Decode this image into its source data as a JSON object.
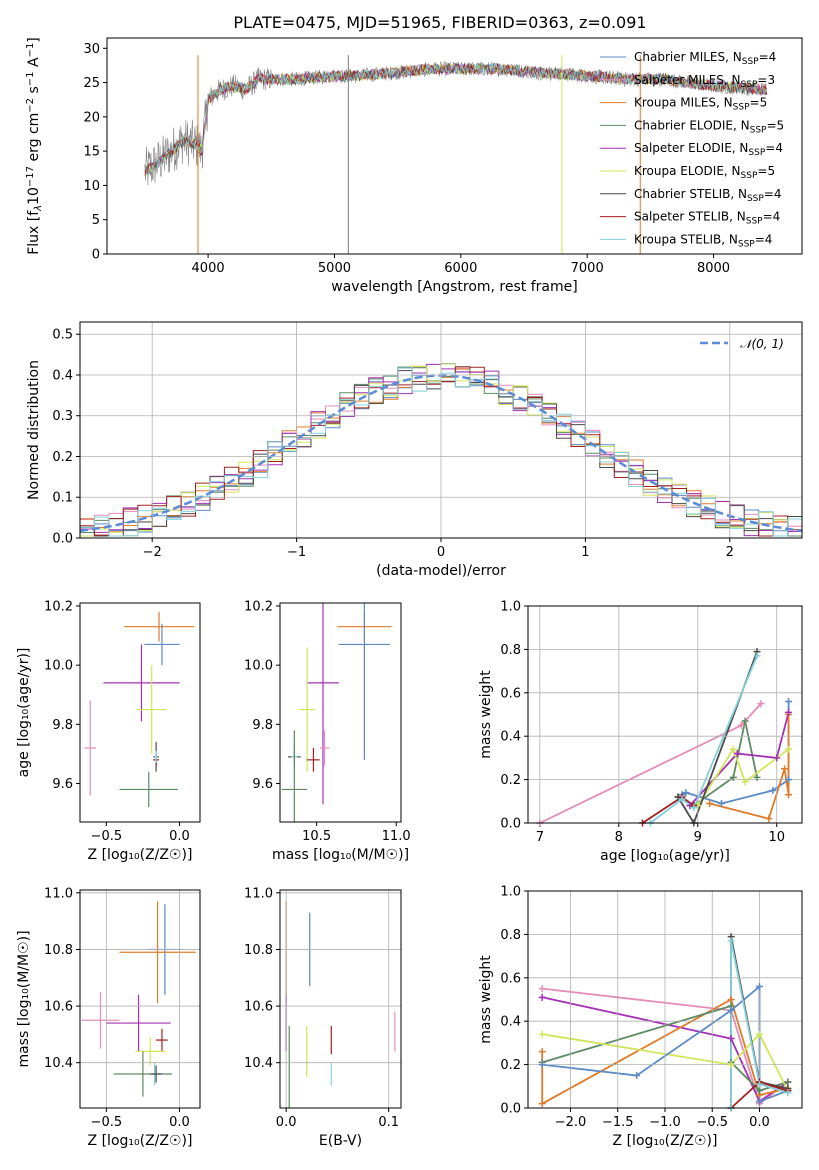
{
  "colors": {
    "chabrier_miles": "#5b8ac6",
    "salpeter_miles": "#e48cb8",
    "kroupa_miles": "#e07b2a",
    "chabrier_elodie": "#5e8a63",
    "salpeter_elodie": "#a330b5",
    "kroupa_elodie": "#d1e65c",
    "chabrier_stelib": "#4a4a4a",
    "salpeter_stelib": "#a32020",
    "kroupa_stelib": "#82d0db",
    "normal_fit": "#5b8ad6"
  },
  "chart_data": [
    {
      "id": "spectrum",
      "type": "line",
      "title": "PLATE=0475, MJD=51965, FIBERID=0363, z=0.091",
      "xlabel": "wavelength [Angstrom, rest frame]",
      "ylabel_parts": [
        "Flux [f",
        "λ",
        "10",
        "−17",
        " erg cm",
        "−2",
        " s",
        "−1",
        " A",
        "−1",
        "]"
      ],
      "xlim": [
        3200,
        8700
      ],
      "ylim": [
        0,
        31.5
      ],
      "xticks": [
        "4000",
        "5000",
        "6000",
        "7000",
        "8000"
      ],
      "yticks": [
        "0",
        "5",
        "10",
        "15",
        "20",
        "25",
        "30"
      ],
      "xticks_v": [
        4000,
        5000,
        6000,
        7000,
        8000
      ],
      "yticks_v": [
        0,
        5,
        10,
        15,
        20,
        25,
        30
      ],
      "observed_continuum": {
        "x": [
          3500,
          3650,
          3800,
          3900,
          3950,
          4000,
          4100,
          4200,
          4300,
          4400,
          4500,
          4700,
          5000,
          5200,
          5500,
          5800,
          6000,
          6300,
          6600,
          7000,
          7300,
          7600,
          8000,
          8400
        ],
        "y": [
          12,
          14,
          16.5,
          16,
          15,
          22.5,
          24,
          24.5,
          24,
          25.5,
          25.5,
          25.5,
          26,
          26,
          26.5,
          27,
          27,
          27,
          26.5,
          26,
          25.5,
          25.5,
          24.5,
          24
        ]
      },
      "legend": [
        {
          "label": "Chabrier MILES, N",
          "sub": "SSP",
          "tail": "=4"
        },
        {
          "label": "Salpeter MILES, N",
          "sub": "SSP",
          "tail": "=3"
        },
        {
          "label": "Kroupa MILES, N",
          "sub": "SSP",
          "tail": "=5"
        },
        {
          "label": "Chabrier ELODIE, N",
          "sub": "SSP",
          "tail": "=5"
        },
        {
          "label": "Salpeter ELODIE, N",
          "sub": "SSP",
          "tail": "=4"
        },
        {
          "label": "Kroupa ELODIE, N",
          "sub": "SSP",
          "tail": "=5"
        },
        {
          "label": "Chabrier STELIB, N",
          "sub": "SSP",
          "tail": "=4"
        },
        {
          "label": "Salpeter STELIB, N",
          "sub": "SSP",
          "tail": "=4"
        },
        {
          "label": "Kroupa STELIB, N",
          "sub": "SSP",
          "tail": "=4"
        }
      ]
    },
    {
      "id": "residuals",
      "type": "bar",
      "xlabel": "(data-model)/error",
      "ylabel": "Normed distribution",
      "xlim": [
        -2.5,
        2.5
      ],
      "ylim": [
        0,
        0.53
      ],
      "xticks": [
        "−2",
        "−1",
        "0",
        "1",
        "2"
      ],
      "yticks": [
        "0.0",
        "0.1",
        "0.2",
        "0.3",
        "0.4",
        "0.5"
      ],
      "xticks_v": [
        -2,
        -1,
        0,
        1,
        2
      ],
      "yticks_v": [
        0,
        0.1,
        0.2,
        0.3,
        0.4,
        0.5
      ],
      "bin_width": 0.1,
      "legend_label": "𝒩(0, 1)"
    },
    {
      "id": "age_vs_Z",
      "type": "scatter",
      "xlabel": "Z [log₁₀(Z/Z☉)]",
      "ylabel": "age  [log₁₀(age/yr)]",
      "xlim": [
        -0.68,
        0.14
      ],
      "ylim": [
        9.47,
        10.21
      ],
      "xticks": [
        "−0.5",
        "0.0"
      ],
      "xticks_v": [
        -0.5,
        0.0
      ],
      "yticks": [
        "9.6",
        "9.8",
        "10.0",
        "10.2"
      ],
      "yticks_v": [
        9.6,
        9.8,
        10.0,
        10.2
      ],
      "points": [
        {
          "s": "kroupa_miles",
          "x": -0.14,
          "y": 10.13,
          "xerr": 0.24,
          "yerr": 0.05
        },
        {
          "s": "chabrier_miles",
          "x": -0.12,
          "y": 10.07,
          "xerr": 0.12,
          "yerr": 0.07
        },
        {
          "s": "salpeter_elodie",
          "x": -0.26,
          "y": 9.94,
          "xerr": 0.26,
          "yerr": 0.13
        },
        {
          "s": "kroupa_elodie",
          "x": -0.19,
          "y": 9.85,
          "xerr": 0.1,
          "yerr": 0.15
        },
        {
          "s": "salpeter_miles",
          "x": -0.61,
          "y": 9.72,
          "xerr": 0.04,
          "yerr": 0.16
        },
        {
          "s": "chabrier_stelib",
          "x": -0.16,
          "y": 9.69,
          "xerr": 0.02,
          "yerr": 0.05
        },
        {
          "s": "salpeter_stelib",
          "x": -0.16,
          "y": 9.68,
          "xerr": 0.02,
          "yerr": 0.02
        },
        {
          "s": "kroupa_stelib",
          "x": -0.16,
          "y": 9.69,
          "xerr": 0.01,
          "yerr": 0.02
        },
        {
          "s": "chabrier_elodie",
          "x": -0.21,
          "y": 9.58,
          "xerr": 0.2,
          "yerr": 0.06
        }
      ]
    },
    {
      "id": "age_vs_mass",
      "type": "scatter",
      "xlabel": "mass [log₁₀(M/M☉)]",
      "ylabel": "",
      "xlim": [
        10.27,
        11.03
      ],
      "ylim": [
        9.47,
        10.21
      ],
      "xticks": [
        "10.5",
        "11.0"
      ],
      "xticks_v": [
        10.5,
        11.0
      ],
      "yticks": [
        "9.6",
        "9.8",
        "10.0",
        "10.2"
      ],
      "yticks_v": [
        9.6,
        9.8,
        10.0,
        10.2
      ],
      "points": [
        {
          "s": "kroupa_miles",
          "x": 10.8,
          "y": 10.13,
          "xerr": 0.17,
          "yerr": 0.05
        },
        {
          "s": "chabrier_miles",
          "x": 10.8,
          "y": 10.07,
          "xerr": 0.16,
          "yerr": 0.39
        },
        {
          "s": "salpeter_elodie",
          "x": 10.54,
          "y": 9.94,
          "xerr": 0.1,
          "yerr": 0.41
        },
        {
          "s": "kroupa_elodie",
          "x": 10.44,
          "y": 9.85,
          "xerr": 0.05,
          "yerr": 0.21
        },
        {
          "s": "salpeter_miles",
          "x": 10.55,
          "y": 9.72,
          "xerr": 0.03,
          "yerr": 0.06
        },
        {
          "s": "chabrier_stelib",
          "x": 10.36,
          "y": 9.69,
          "xerr": 0.04,
          "yerr": 0.02
        },
        {
          "s": "salpeter_stelib",
          "x": 10.48,
          "y": 9.68,
          "xerr": 0.04,
          "yerr": 0.04
        },
        {
          "s": "kroupa_stelib",
          "x": 10.36,
          "y": 9.69,
          "xerr": 0.02,
          "yerr": 0.04
        },
        {
          "s": "chabrier_elodie",
          "x": 10.36,
          "y": 9.58,
          "xerr": 0.08,
          "yerr": 0.2
        }
      ]
    },
    {
      "id": "mass_weight_vs_age",
      "type": "line",
      "xlabel": "age  [log₁₀(age/yr)]",
      "ylabel": "mass weight",
      "xlim": [
        6.85,
        10.32
      ],
      "ylim": [
        0,
        1
      ],
      "xticks": [
        "7",
        "8",
        "9",
        "10"
      ],
      "xticks_v": [
        7,
        8,
        9,
        10
      ],
      "yticks": [
        "0.0",
        "0.2",
        "0.4",
        "0.6",
        "0.8",
        "1.0"
      ],
      "yticks_v": [
        0,
        0.2,
        0.4,
        0.6,
        0.8,
        1.0
      ],
      "series": [
        {
          "s": "salpeter_miles",
          "x": [
            7.0,
            9.55,
            9.8
          ],
          "y": [
            0.0,
            0.45,
            0.55
          ]
        },
        {
          "s": "chabrier_miles",
          "x": [
            8.8,
            8.85,
            9.3,
            9.95,
            10.15,
            10.15
          ],
          "y": [
            0.13,
            0.14,
            0.09,
            0.15,
            0.2,
            0.56
          ]
        },
        {
          "s": "kroupa_miles",
          "x": [
            9.15,
            9.9,
            10.1,
            10.15,
            10.15
          ],
          "y": [
            0.09,
            0.02,
            0.25,
            0.13,
            0.5
          ]
        },
        {
          "s": "chabrier_elodie",
          "x": [
            8.75,
            8.95,
            9.45,
            9.6,
            9.75
          ],
          "y": [
            0.12,
            0.08,
            0.21,
            0.47,
            0.21
          ]
        },
        {
          "s": "salpeter_elodie",
          "x": [
            8.9,
            9.5,
            10.0,
            10.15
          ],
          "y": [
            0.08,
            0.32,
            0.3,
            0.51
          ]
        },
        {
          "s": "kroupa_elodie",
          "x": [
            9.0,
            9.45,
            9.6,
            10.15
          ],
          "y": [
            0.08,
            0.34,
            0.19,
            0.34
          ]
        },
        {
          "s": "chabrier_stelib",
          "x": [
            8.75,
            8.95,
            9.75
          ],
          "y": [
            0.12,
            0.0,
            0.79
          ]
        },
        {
          "s": "salpeter_stelib",
          "x": [
            8.3,
            8.8,
            8.95
          ],
          "y": [
            0.0,
            0.12,
            0.08
          ]
        },
        {
          "s": "kroupa_stelib",
          "x": [
            8.4,
            8.8,
            8.95,
            9.75
          ],
          "y": [
            0.0,
            0.11,
            0.07,
            0.77
          ]
        }
      ]
    },
    {
      "id": "mass_vs_Z",
      "type": "scatter",
      "xlabel": "Z [log₁₀(Z/Z☉)]",
      "ylabel": "mass [log₁₀(M/M☉)]",
      "xlim": [
        -0.68,
        0.14
      ],
      "ylim": [
        10.24,
        11.01
      ],
      "xticks": [
        "−0.5",
        "0.0"
      ],
      "xticks_v": [
        -0.5,
        0.0
      ],
      "yticks": [
        "10.4",
        "10.6",
        "10.8",
        "11.0"
      ],
      "yticks_v": [
        10.4,
        10.6,
        10.8,
        11.0
      ],
      "points": [
        {
          "s": "chabrier_miles",
          "x": -0.1,
          "y": 10.8,
          "xerr": 0.12,
          "yerr": 0.16
        },
        {
          "s": "kroupa_miles",
          "x": -0.15,
          "y": 10.79,
          "xerr": 0.26,
          "yerr": 0.18
        },
        {
          "s": "salpeter_miles",
          "x": -0.54,
          "y": 10.55,
          "xerr": 0.13,
          "yerr": 0.1
        },
        {
          "s": "salpeter_elodie",
          "x": -0.28,
          "y": 10.54,
          "xerr": 0.22,
          "yerr": 0.1
        },
        {
          "s": "salpeter_stelib",
          "x": -0.12,
          "y": 10.48,
          "xerr": 0.04,
          "yerr": 0.04
        },
        {
          "s": "kroupa_elodie",
          "x": -0.2,
          "y": 10.44,
          "xerr": 0.1,
          "yerr": 0.05
        },
        {
          "s": "chabrier_elodie",
          "x": -0.25,
          "y": 10.36,
          "xerr": 0.2,
          "yerr": 0.08
        },
        {
          "s": "kroupa_stelib",
          "x": -0.17,
          "y": 10.36,
          "xerr": 0.02,
          "yerr": 0.04
        },
        {
          "s": "chabrier_stelib",
          "x": -0.16,
          "y": 10.36,
          "xerr": 0.04,
          "yerr": 0.03
        }
      ]
    },
    {
      "id": "mass_vs_ebv",
      "type": "scatter",
      "xlabel": "E(B-V)",
      "ylabel": "",
      "xlim": [
        -0.006,
        0.112
      ],
      "ylim": [
        10.24,
        11.01
      ],
      "xticks": [
        "0.0",
        "0.1"
      ],
      "xticks_v": [
        0.0,
        0.1
      ],
      "yticks": [
        "10.4",
        "10.6",
        "10.8",
        "11.0"
      ],
      "yticks_v": [
        10.4,
        10.6,
        10.8,
        11.0
      ],
      "points": [
        {
          "s": "kroupa_miles",
          "x": 0.0,
          "y": 10.79,
          "xerr": 0,
          "yerr": 0.18
        },
        {
          "s": "chabrier_miles",
          "x": 0.023,
          "y": 10.8,
          "xerr": 0,
          "yerr": 0.13
        },
        {
          "s": "salpeter_elodie",
          "x": 0.0,
          "y": 10.54,
          "xerr": 0,
          "yerr": 0.1
        },
        {
          "s": "chabrier_elodie",
          "x": 0.003,
          "y": 10.38,
          "xerr": 0,
          "yerr": 0.15
        },
        {
          "s": "kroupa_elodie",
          "x": 0.02,
          "y": 10.44,
          "xerr": 0,
          "yerr": 0.09
        },
        {
          "s": "salpeter_stelib",
          "x": 0.044,
          "y": 10.48,
          "xerr": 0,
          "yerr": 0.05
        },
        {
          "s": "kroupa_stelib",
          "x": 0.044,
          "y": 10.36,
          "xerr": 0,
          "yerr": 0.04
        },
        {
          "s": "salpeter_miles",
          "x": 0.106,
          "y": 10.51,
          "xerr": 0,
          "yerr": 0.07
        }
      ]
    },
    {
      "id": "mass_weight_vs_Z",
      "type": "line",
      "xlabel": "Z [log₁₀(Z/Z☉)]",
      "ylabel": "mass weight",
      "xlim": [
        -2.45,
        0.45
      ],
      "ylim": [
        0,
        1
      ],
      "xticks": [
        "−2.0",
        "−1.5",
        "−1.0",
        "−0.5",
        "0.0"
      ],
      "xticks_v": [
        -2.0,
        -1.5,
        -1.0,
        -0.5,
        0.0
      ],
      "yticks": [
        "0.0",
        "0.2",
        "0.4",
        "0.6",
        "0.8",
        "1.0"
      ],
      "yticks_v": [
        0,
        0.2,
        0.4,
        0.6,
        0.8,
        1.0
      ],
      "series": [
        {
          "s": "salpeter_miles",
          "x": [
            -2.3,
            -0.3,
            0.0,
            0.3
          ],
          "y": [
            0.55,
            0.45,
            0.02,
            0.12
          ]
        },
        {
          "s": "salpeter_elodie",
          "x": [
            -2.3,
            -0.3,
            0.0,
            0.3
          ],
          "y": [
            0.51,
            0.32,
            0.03,
            0.12
          ]
        },
        {
          "s": "kroupa_miles",
          "x": [
            -2.3,
            -2.3,
            -0.3,
            0.0,
            0.3
          ],
          "y": [
            0.26,
            0.02,
            0.5,
            0.06,
            0.09
          ]
        },
        {
          "s": "chabrier_elodie",
          "x": [
            -2.3,
            -0.3,
            -0.3,
            0.0,
            0.3
          ],
          "y": [
            0.21,
            0.47,
            0.21,
            0.08,
            0.12
          ]
        },
        {
          "s": "kroupa_elodie",
          "x": [
            -2.3,
            -0.3,
            0.0,
            0.3
          ],
          "y": [
            0.34,
            0.2,
            0.34,
            0.08
          ]
        },
        {
          "s": "chabrier_miles",
          "x": [
            -2.3,
            -1.3,
            -0.3,
            0.0,
            0.0,
            0.3
          ],
          "y": [
            0.2,
            0.15,
            0.45,
            0.56,
            0.03,
            0.08
          ]
        },
        {
          "s": "chabrier_stelib",
          "x": [
            -0.3,
            -0.3,
            0.0,
            0.3
          ],
          "y": [
            0.0,
            0.79,
            0.12,
            0.09
          ]
        },
        {
          "s": "salpeter_stelib",
          "x": [
            -0.3,
            0.0,
            0.3
          ],
          "y": [
            0.0,
            0.12,
            0.08
          ]
        },
        {
          "s": "kroupa_stelib",
          "x": [
            -0.3,
            -0.3,
            0.0,
            0.3
          ],
          "y": [
            0.0,
            0.77,
            0.11,
            0.07
          ]
        }
      ]
    }
  ]
}
